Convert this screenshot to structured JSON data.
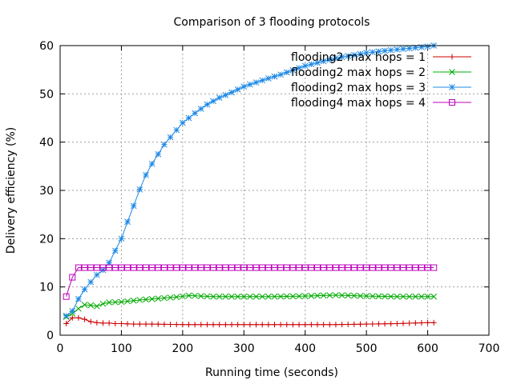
{
  "chart_data": {
    "type": "line",
    "title": "Comparison of 3 flooding protocols",
    "xlabel": "Running time (seconds)",
    "ylabel": "Delivery efficiency (%)",
    "xlim": [
      0,
      700
    ],
    "ylim": [
      0,
      60
    ],
    "xticks": [
      0,
      100,
      200,
      300,
      400,
      500,
      600,
      700
    ],
    "yticks": [
      0,
      10,
      20,
      30,
      40,
      50,
      60
    ],
    "grid": true,
    "legend": "top-right",
    "series": [
      {
        "name": "flooding2 max hops = 1",
        "color": "#cc0000",
        "marker": "plus",
        "x": [
          10,
          20,
          30,
          40,
          50,
          60,
          70,
          80,
          90,
          100,
          120,
          150,
          200,
          250,
          300,
          350,
          400,
          450,
          500,
          550,
          600,
          610
        ],
        "y": [
          2.4,
          3.6,
          3.6,
          3.3,
          2.8,
          2.6,
          2.5,
          2.5,
          2.4,
          2.4,
          2.3,
          2.3,
          2.2,
          2.2,
          2.2,
          2.2,
          2.2,
          2.2,
          2.3,
          2.4,
          2.6,
          2.6
        ]
      },
      {
        "name": "flooding2 max hops = 2",
        "color": "#00aa00",
        "marker": "cross",
        "x": [
          10,
          20,
          30,
          40,
          50,
          60,
          70,
          80,
          100,
          130,
          160,
          190,
          210,
          250,
          300,
          350,
          400,
          450,
          500,
          550,
          600,
          610
        ],
        "y": [
          3.8,
          4.5,
          5.5,
          6.3,
          6.2,
          6.0,
          6.5,
          6.8,
          6.9,
          7.3,
          7.6,
          7.9,
          8.2,
          8.0,
          8.0,
          8.0,
          8.1,
          8.3,
          8.1,
          8.0,
          8.0,
          8.0
        ]
      },
      {
        "name": "flooding2 max hops = 3",
        "color": "#1e88e5",
        "marker": "star",
        "x": [
          10,
          20,
          30,
          40,
          50,
          60,
          70,
          80,
          90,
          100,
          110,
          120,
          130,
          140,
          150,
          160,
          170,
          180,
          190,
          200,
          220,
          240,
          260,
          280,
          300,
          330,
          360,
          400,
          450,
          500,
          550,
          600,
          610
        ],
        "y": [
          4.0,
          5.0,
          7.5,
          9.5,
          11.0,
          12.5,
          13.5,
          15.0,
          17.5,
          20.0,
          23.5,
          26.8,
          30.2,
          33.2,
          35.5,
          37.5,
          39.5,
          41.0,
          42.5,
          44.0,
          46.0,
          47.8,
          49.2,
          50.3,
          51.5,
          52.8,
          54.0,
          55.8,
          57.4,
          58.5,
          59.2,
          59.8,
          60.0
        ]
      },
      {
        "name": "flooding4 max hops = 4",
        "color": "#bb00bb",
        "marker": "square",
        "x": [
          10,
          20,
          30,
          40,
          60,
          100,
          200,
          300,
          400,
          500,
          600,
          610
        ],
        "y": [
          8.0,
          12.0,
          14.0,
          14.0,
          14.0,
          14.0,
          14.0,
          14.0,
          14.0,
          14.0,
          14.0,
          14.0
        ]
      }
    ]
  }
}
